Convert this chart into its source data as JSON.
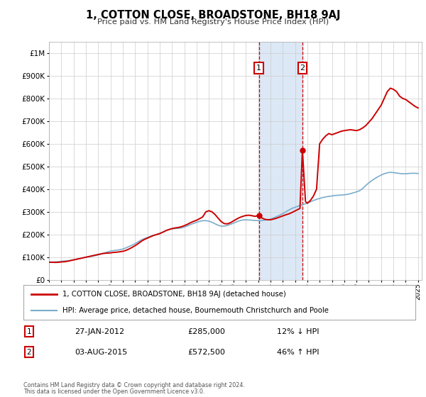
{
  "title": "1, COTTON CLOSE, BROADSTONE, BH18 9AJ",
  "subtitle": "Price paid vs. HM Land Registry's House Price Index (HPI)",
  "legend_line1": "1, COTTON CLOSE, BROADSTONE, BH18 9AJ (detached house)",
  "legend_line2": "HPI: Average price, detached house, Bournemouth Christchurch and Poole",
  "footnote1": "Contains HM Land Registry data © Crown copyright and database right 2024.",
  "footnote2": "This data is licensed under the Open Government Licence v3.0.",
  "house_color": "#cc0000",
  "hpi_color": "#7aadcb",
  "marker_color": "#cc0000",
  "event1_date_x": 2012.07,
  "event2_date_x": 2015.6,
  "event1_price_y": 285000,
  "event2_price_y": 572500,
  "event1_label": "27-JAN-2012",
  "event1_price": "£285,000",
  "event1_hpi": "12% ↓ HPI",
  "event2_label": "03-AUG-2015",
  "event2_price": "£572,500",
  "event2_hpi": "46% ↑ HPI",
  "shade_color": "#dce8f5",
  "ylim_max": 1050000,
  "ylim_min": 0,
  "xlim_min": 1995.0,
  "xlim_max": 2025.3,
  "hpi_data": [
    [
      1995.0,
      78000
    ],
    [
      1995.25,
      79000
    ],
    [
      1995.5,
      79500
    ],
    [
      1995.75,
      80000
    ],
    [
      1996.0,
      82000
    ],
    [
      1996.25,
      83000
    ],
    [
      1996.5,
      84000
    ],
    [
      1996.75,
      86000
    ],
    [
      1997.0,
      89000
    ],
    [
      1997.25,
      91000
    ],
    [
      1997.5,
      94000
    ],
    [
      1997.75,
      97000
    ],
    [
      1998.0,
      100000
    ],
    [
      1998.25,
      102000
    ],
    [
      1998.5,
      104000
    ],
    [
      1998.75,
      107000
    ],
    [
      1999.0,
      110000
    ],
    [
      1999.25,
      114000
    ],
    [
      1999.5,
      119000
    ],
    [
      1999.75,
      123000
    ],
    [
      2000.0,
      127000
    ],
    [
      2000.25,
      129000
    ],
    [
      2000.5,
      131000
    ],
    [
      2000.75,
      133000
    ],
    [
      2001.0,
      136000
    ],
    [
      2001.25,
      141000
    ],
    [
      2001.5,
      147000
    ],
    [
      2001.75,
      153000
    ],
    [
      2002.0,
      160000
    ],
    [
      2002.25,
      168000
    ],
    [
      2002.5,
      176000
    ],
    [
      2002.75,
      182000
    ],
    [
      2003.0,
      187000
    ],
    [
      2003.25,
      192000
    ],
    [
      2003.5,
      196000
    ],
    [
      2003.75,
      200000
    ],
    [
      2004.0,
      205000
    ],
    [
      2004.25,
      211000
    ],
    [
      2004.5,
      217000
    ],
    [
      2004.75,
      222000
    ],
    [
      2005.0,
      225000
    ],
    [
      2005.25,
      226000
    ],
    [
      2005.5,
      227000
    ],
    [
      2005.75,
      229000
    ],
    [
      2006.0,
      233000
    ],
    [
      2006.25,
      238000
    ],
    [
      2006.5,
      244000
    ],
    [
      2006.75,
      249000
    ],
    [
      2007.0,
      254000
    ],
    [
      2007.25,
      258000
    ],
    [
      2007.5,
      261000
    ],
    [
      2007.75,
      261000
    ],
    [
      2008.0,
      259000
    ],
    [
      2008.25,
      254000
    ],
    [
      2008.5,
      247000
    ],
    [
      2008.75,
      241000
    ],
    [
      2009.0,
      237000
    ],
    [
      2009.25,
      237000
    ],
    [
      2009.5,
      240000
    ],
    [
      2009.75,
      245000
    ],
    [
      2010.0,
      250000
    ],
    [
      2010.25,
      256000
    ],
    [
      2010.5,
      261000
    ],
    [
      2010.75,
      264000
    ],
    [
      2011.0,
      265000
    ],
    [
      2011.25,
      264000
    ],
    [
      2011.5,
      263000
    ],
    [
      2011.75,
      262000
    ],
    [
      2012.0,
      261000
    ],
    [
      2012.25,
      261000
    ],
    [
      2012.5,
      263000
    ],
    [
      2012.75,
      265000
    ],
    [
      2013.0,
      268000
    ],
    [
      2013.25,
      273000
    ],
    [
      2013.5,
      279000
    ],
    [
      2013.75,
      285000
    ],
    [
      2014.0,
      292000
    ],
    [
      2014.25,
      300000
    ],
    [
      2014.5,
      308000
    ],
    [
      2014.75,
      315000
    ],
    [
      2015.0,
      320000
    ],
    [
      2015.25,
      325000
    ],
    [
      2015.5,
      330000
    ],
    [
      2015.75,
      334000
    ],
    [
      2016.0,
      338000
    ],
    [
      2016.25,
      344000
    ],
    [
      2016.5,
      350000
    ],
    [
      2016.75,
      355000
    ],
    [
      2017.0,
      359000
    ],
    [
      2017.25,
      363000
    ],
    [
      2017.5,
      366000
    ],
    [
      2017.75,
      368000
    ],
    [
      2018.0,
      370000
    ],
    [
      2018.25,
      372000
    ],
    [
      2018.5,
      373000
    ],
    [
      2018.75,
      374000
    ],
    [
      2019.0,
      375000
    ],
    [
      2019.25,
      377000
    ],
    [
      2019.5,
      380000
    ],
    [
      2019.75,
      384000
    ],
    [
      2020.0,
      388000
    ],
    [
      2020.25,
      393000
    ],
    [
      2020.5,
      403000
    ],
    [
      2020.75,
      416000
    ],
    [
      2021.0,
      428000
    ],
    [
      2021.25,
      438000
    ],
    [
      2021.5,
      447000
    ],
    [
      2021.75,
      455000
    ],
    [
      2022.0,
      462000
    ],
    [
      2022.25,
      468000
    ],
    [
      2022.5,
      472000
    ],
    [
      2022.75,
      474000
    ],
    [
      2023.0,
      473000
    ],
    [
      2023.25,
      471000
    ],
    [
      2023.5,
      469000
    ],
    [
      2023.75,
      468000
    ],
    [
      2024.0,
      468000
    ],
    [
      2024.25,
      469000
    ],
    [
      2024.5,
      470000
    ],
    [
      2024.75,
      470000
    ],
    [
      2025.0,
      469000
    ]
  ],
  "house_data": [
    [
      1995.0,
      78000
    ],
    [
      1995.25,
      77500
    ],
    [
      1995.5,
      77000
    ],
    [
      1995.75,
      77500
    ],
    [
      1996.0,
      79000
    ],
    [
      1996.25,
      80000
    ],
    [
      1996.5,
      82000
    ],
    [
      1996.75,
      85000
    ],
    [
      1997.0,
      88000
    ],
    [
      1997.25,
      91000
    ],
    [
      1997.5,
      94000
    ],
    [
      1997.75,
      97000
    ],
    [
      1998.0,
      100000
    ],
    [
      1998.25,
      103000
    ],
    [
      1998.5,
      106000
    ],
    [
      1998.75,
      109000
    ],
    [
      1999.0,
      112000
    ],
    [
      1999.25,
      115000
    ],
    [
      1999.5,
      117000
    ],
    [
      1999.75,
      118000
    ],
    [
      2000.0,
      119000
    ],
    [
      2000.25,
      121000
    ],
    [
      2000.5,
      122000
    ],
    [
      2000.75,
      124000
    ],
    [
      2001.0,
      126000
    ],
    [
      2001.25,
      130000
    ],
    [
      2001.5,
      136000
    ],
    [
      2001.75,
      143000
    ],
    [
      2002.0,
      151000
    ],
    [
      2002.25,
      160000
    ],
    [
      2002.5,
      170000
    ],
    [
      2002.75,
      178000
    ],
    [
      2003.0,
      184000
    ],
    [
      2003.25,
      190000
    ],
    [
      2003.5,
      196000
    ],
    [
      2003.75,
      200000
    ],
    [
      2004.0,
      204000
    ],
    [
      2004.25,
      210000
    ],
    [
      2004.5,
      217000
    ],
    [
      2004.75,
      222000
    ],
    [
      2005.0,
      226000
    ],
    [
      2005.25,
      229000
    ],
    [
      2005.5,
      231000
    ],
    [
      2005.75,
      234000
    ],
    [
      2006.0,
      239000
    ],
    [
      2006.25,
      245000
    ],
    [
      2006.5,
      252000
    ],
    [
      2006.75,
      258000
    ],
    [
      2007.0,
      263000
    ],
    [
      2007.25,
      270000
    ],
    [
      2007.5,
      278000
    ],
    [
      2007.75,
      300000
    ],
    [
      2008.0,
      305000
    ],
    [
      2008.25,
      300000
    ],
    [
      2008.5,
      288000
    ],
    [
      2008.75,
      272000
    ],
    [
      2009.0,
      257000
    ],
    [
      2009.25,
      248000
    ],
    [
      2009.5,
      247000
    ],
    [
      2009.75,
      252000
    ],
    [
      2010.0,
      260000
    ],
    [
      2010.25,
      268000
    ],
    [
      2010.5,
      275000
    ],
    [
      2010.75,
      280000
    ],
    [
      2011.0,
      284000
    ],
    [
      2011.25,
      285000
    ],
    [
      2011.5,
      283000
    ],
    [
      2011.75,
      280000
    ],
    [
      2012.07,
      285000
    ],
    [
      2012.3,
      273000
    ],
    [
      2012.5,
      268000
    ],
    [
      2012.75,
      265000
    ],
    [
      2013.0,
      265000
    ],
    [
      2013.25,
      268000
    ],
    [
      2013.5,
      272000
    ],
    [
      2013.75,
      277000
    ],
    [
      2014.0,
      282000
    ],
    [
      2014.25,
      287000
    ],
    [
      2014.5,
      291000
    ],
    [
      2014.75,
      297000
    ],
    [
      2015.0,
      304000
    ],
    [
      2015.4,
      315000
    ],
    [
      2015.6,
      572500
    ],
    [
      2015.85,
      345000
    ],
    [
      2016.0,
      338000
    ],
    [
      2016.25,
      350000
    ],
    [
      2016.5,
      370000
    ],
    [
      2016.75,
      400000
    ],
    [
      2017.0,
      600000
    ],
    [
      2017.25,
      620000
    ],
    [
      2017.5,
      635000
    ],
    [
      2017.75,
      645000
    ],
    [
      2018.0,
      640000
    ],
    [
      2018.25,
      645000
    ],
    [
      2018.5,
      650000
    ],
    [
      2018.75,
      655000
    ],
    [
      2019.0,
      658000
    ],
    [
      2019.25,
      660000
    ],
    [
      2019.5,
      662000
    ],
    [
      2019.75,
      660000
    ],
    [
      2020.0,
      658000
    ],
    [
      2020.25,
      662000
    ],
    [
      2020.5,
      670000
    ],
    [
      2020.75,
      680000
    ],
    [
      2021.0,
      695000
    ],
    [
      2021.25,
      710000
    ],
    [
      2021.5,
      730000
    ],
    [
      2021.75,
      750000
    ],
    [
      2022.0,
      770000
    ],
    [
      2022.25,
      800000
    ],
    [
      2022.5,
      830000
    ],
    [
      2022.75,
      845000
    ],
    [
      2023.0,
      840000
    ],
    [
      2023.25,
      830000
    ],
    [
      2023.5,
      810000
    ],
    [
      2023.75,
      800000
    ],
    [
      2024.0,
      795000
    ],
    [
      2024.25,
      785000
    ],
    [
      2024.5,
      775000
    ],
    [
      2024.75,
      765000
    ],
    [
      2025.0,
      758000
    ]
  ]
}
